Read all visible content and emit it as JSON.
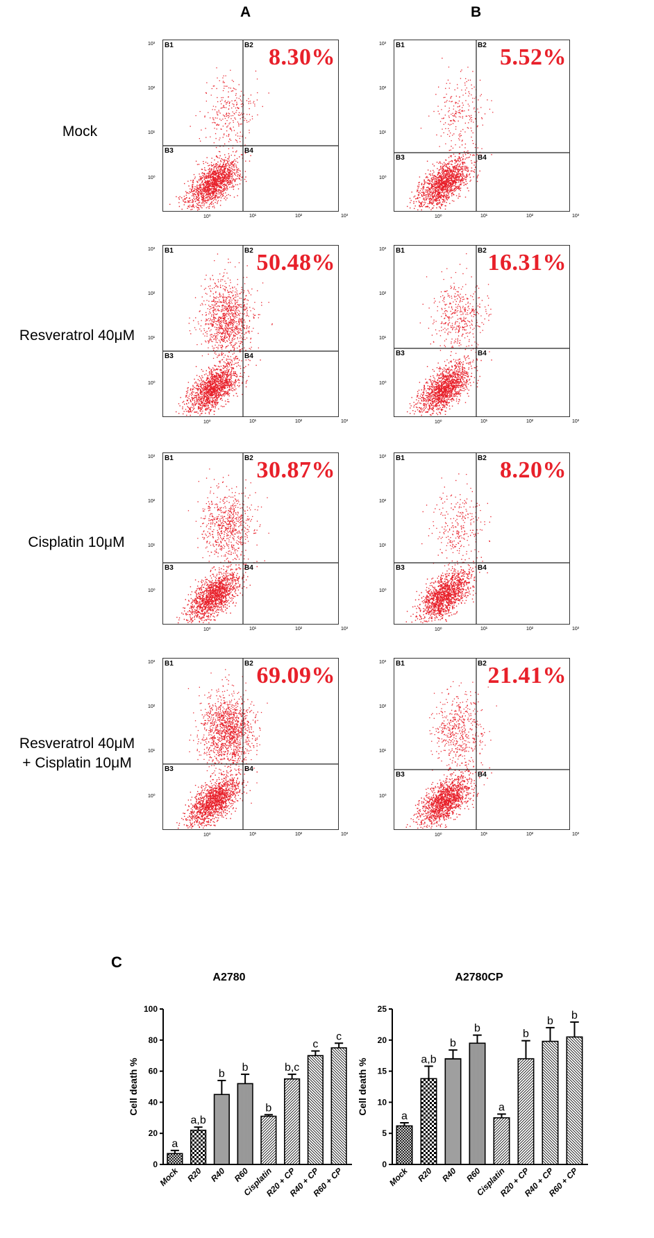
{
  "columns": [
    "A",
    "B"
  ],
  "rows": [
    {
      "label": "Mock",
      "label2": ""
    },
    {
      "label": "Resveratrol 40μM",
      "label2": ""
    },
    {
      "label": "Cisplatin 10μM",
      "label2": ""
    },
    {
      "label": "Resveratrol 40μM",
      "label2": "+ Cisplatin 10μM"
    }
  ],
  "quadrants": [
    "B1",
    "B2",
    "B3",
    "B4"
  ],
  "y_ticks": [
    "10³",
    "10²",
    "10¹",
    "10⁰"
  ],
  "x_ticks": [
    "10⁰",
    "10¹",
    "10²",
    "10³"
  ],
  "scatter_color": "#e8202a",
  "panels": [
    {
      "col": "A",
      "row": 0,
      "percent": "8.30%"
    },
    {
      "col": "B",
      "row": 0,
      "percent": "5.52%"
    },
    {
      "col": "A",
      "row": 1,
      "percent": "50.48%"
    },
    {
      "col": "B",
      "row": 1,
      "percent": "16.31%"
    },
    {
      "col": "A",
      "row": 2,
      "percent": "30.87%"
    },
    {
      "col": "B",
      "row": 2,
      "percent": "8.20%"
    },
    {
      "col": "A",
      "row": 3,
      "percent": "69.09%"
    },
    {
      "col": "B",
      "row": 3,
      "percent": "21.41%"
    }
  ],
  "section_c_label": "C",
  "chart_data": [
    {
      "type": "bar",
      "title": "A2780",
      "ylabel": "Cell death %",
      "xlabel": "",
      "categories": [
        "Mock",
        "R20",
        "R40",
        "R60",
        "Cisplatin",
        "R20 + CP",
        "R40 + CP",
        "R60 + CP"
      ],
      "values": [
        7,
        22,
        45,
        52,
        31,
        55,
        70,
        75
      ],
      "errors": [
        2,
        2,
        9,
        6,
        1,
        3,
        3,
        3
      ],
      "sig_letters": [
        "a",
        "a,b",
        "b",
        "b",
        "b",
        "b,c",
        "c",
        "c"
      ],
      "patterns": [
        "cross",
        "checker",
        "hlines",
        "vlines",
        "diag",
        "diag",
        "diag2",
        "diag2"
      ],
      "ylim": [
        0,
        100
      ],
      "yticks": [
        0,
        20,
        40,
        60,
        80,
        100
      ]
    },
    {
      "type": "bar",
      "title": "A2780CP",
      "ylabel": "Cell death %",
      "xlabel": "",
      "categories": [
        "Mock",
        "R20",
        "R40",
        "R60",
        "Cisplatin",
        "R20 + CP",
        "R40 + CP",
        "R60 + CP"
      ],
      "values": [
        6.2,
        13.8,
        17,
        19.5,
        7.5,
        17,
        19.8,
        20.5
      ],
      "errors": [
        0.5,
        2.0,
        1.4,
        1.3,
        0.6,
        2.9,
        2.2,
        2.4
      ],
      "sig_letters": [
        "a",
        "a,b",
        "b",
        "b",
        "a",
        "b",
        "b",
        "b"
      ],
      "patterns": [
        "cross",
        "checker",
        "hlines",
        "vlines",
        "diag",
        "diag",
        "diag2",
        "diag2"
      ],
      "ylim": [
        0,
        25
      ],
      "yticks": [
        0,
        5,
        10,
        15,
        20,
        25
      ]
    }
  ]
}
